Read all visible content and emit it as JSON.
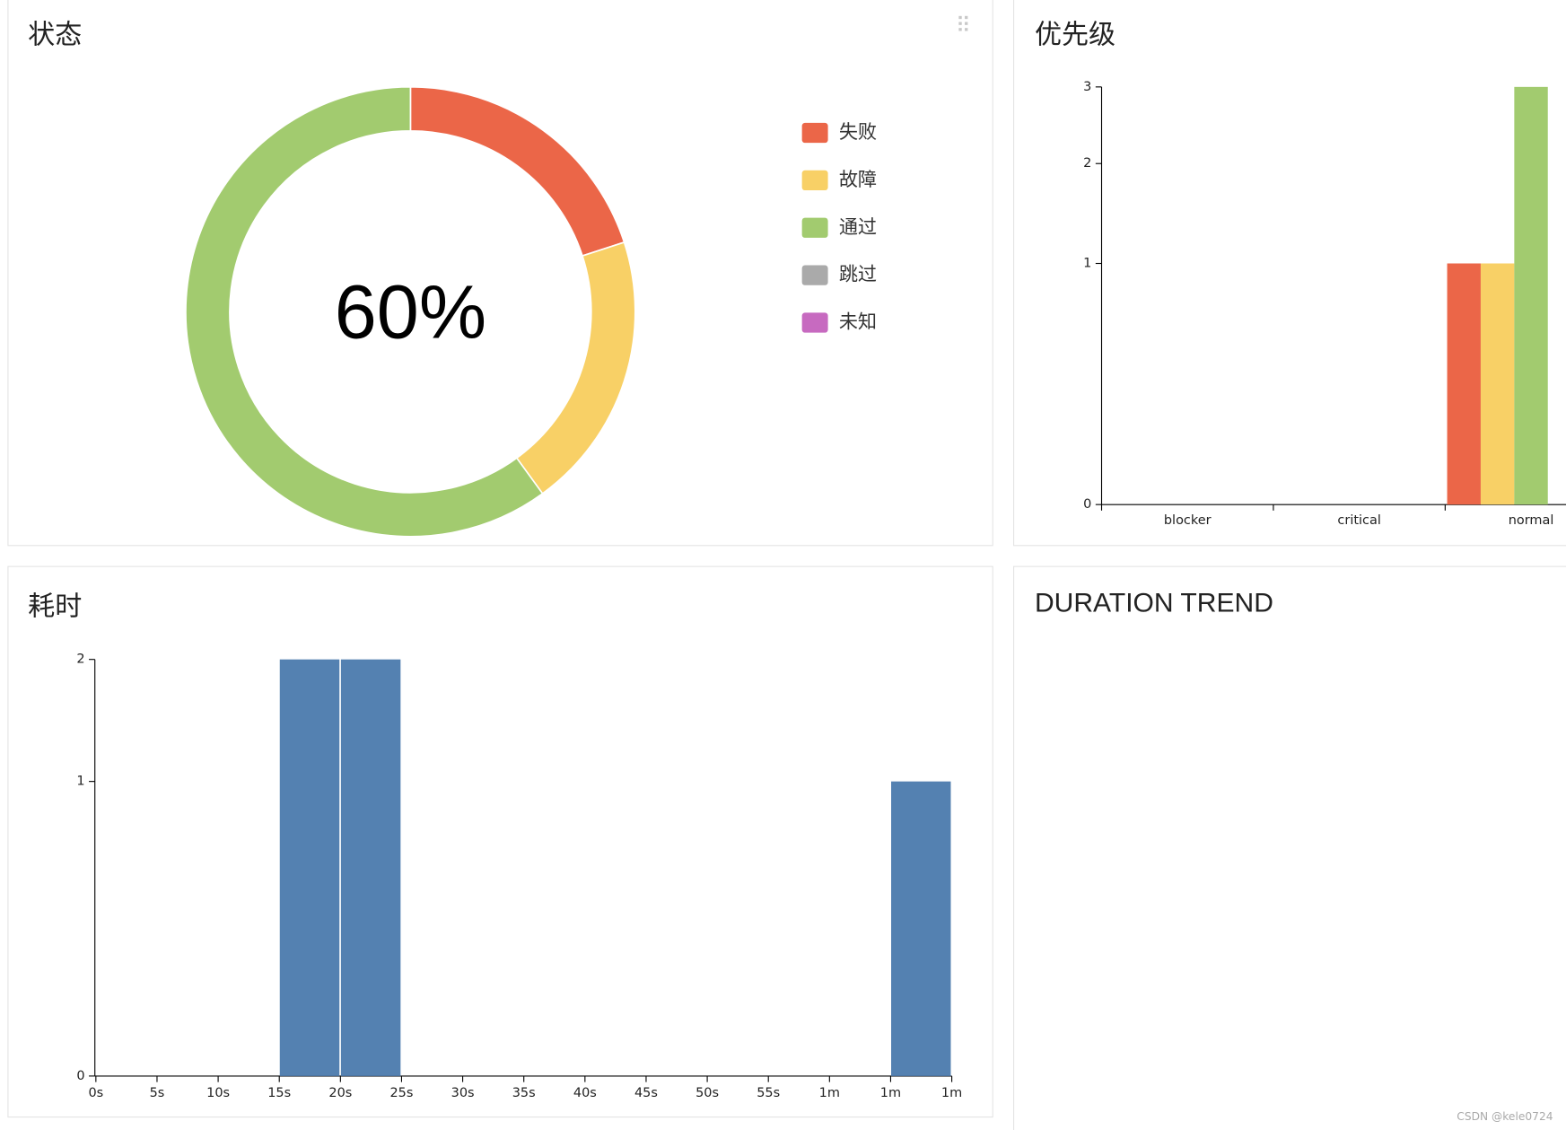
{
  "widgets": {
    "duration_trend": {
      "title": "DURATION TREND"
    }
  },
  "watermark": "CSDN @kele0724",
  "chart_data": [
    {
      "type": "pie",
      "title": "状态",
      "center_label": "60%",
      "categories": [
        "失败",
        "故障",
        "通过",
        "跳过",
        "未知"
      ],
      "values": [
        1,
        1,
        3,
        0,
        0
      ],
      "colors": [
        "#eb6648",
        "#f8d066",
        "#a2cb6f",
        "#aaaaaa",
        "#c76ac0"
      ],
      "donut": true,
      "legend": "right"
    },
    {
      "type": "bar",
      "title": "优先级",
      "categories": [
        "blocker",
        "critical",
        "normal"
      ],
      "series": [
        {
          "color": "#eb6648",
          "values": [
            0,
            0,
            1
          ]
        },
        {
          "color": "#f8d066",
          "values": [
            0,
            0,
            1
          ]
        },
        {
          "color": "#a2cb6f",
          "values": [
            0,
            0,
            3
          ]
        },
        {
          "color": "#aaaaaa",
          "values": [
            0,
            0,
            0
          ]
        },
        {
          "color": "#c76ac0",
          "values": [
            0,
            0,
            0
          ]
        }
      ],
      "ylim": [
        0,
        3
      ],
      "yticks": [
        0,
        1,
        2,
        3
      ],
      "y_scale": "sqrt"
    },
    {
      "type": "histogram",
      "title": "耗时",
      "bins": [
        0,
        5,
        10,
        15,
        20,
        25,
        30,
        35,
        40,
        45,
        50,
        55,
        60,
        65,
        70
      ],
      "values": [
        0,
        0,
        0,
        2,
        2,
        0,
        0,
        0,
        0,
        0,
        0,
        0,
        0,
        1
      ],
      "color": "#5481b1",
      "xlim": [
        0,
        70
      ],
      "xticks": [
        {
          "value": 0,
          "label": "0s"
        },
        {
          "value": 5,
          "label": "5s"
        },
        {
          "value": 10,
          "label": "10s"
        },
        {
          "value": 15,
          "label": "15s"
        },
        {
          "value": 20,
          "label": "20s"
        },
        {
          "value": 25,
          "label": "25s"
        },
        {
          "value": 30,
          "label": "30s"
        },
        {
          "value": 35,
          "label": "35s"
        },
        {
          "value": 40,
          "label": "40s"
        },
        {
          "value": 45,
          "label": "45s"
        },
        {
          "value": 50,
          "label": "50s"
        },
        {
          "value": 55,
          "label": "55s"
        },
        {
          "value": 60,
          "label": "1m"
        },
        {
          "value": 65,
          "label": "1m"
        },
        {
          "value": 70,
          "label": "1m"
        }
      ],
      "ylim": [
        0,
        2
      ],
      "yticks": [
        0,
        1,
        2
      ],
      "y_scale": "sqrt"
    }
  ]
}
